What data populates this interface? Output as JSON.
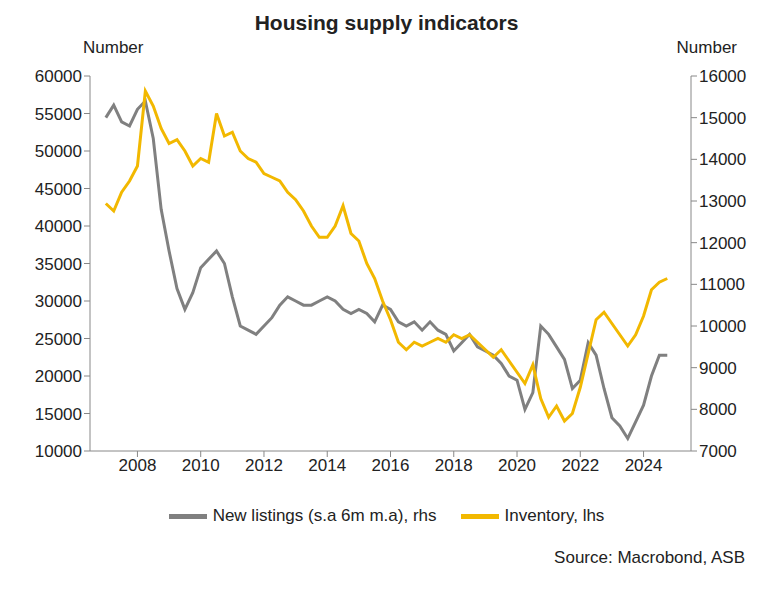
{
  "chart_data": {
    "type": "line",
    "title": "Housing supply indicators",
    "ylabel": "Number",
    "y2label": "Number",
    "source": "Source: Macrobond, ASB",
    "x": [
      2007.0,
      2007.25,
      2007.5,
      2007.75,
      2008.0,
      2008.25,
      2008.5,
      2008.75,
      2009.0,
      2009.25,
      2009.5,
      2009.75,
      2010.0,
      2010.25,
      2010.5,
      2010.75,
      2011.0,
      2011.25,
      2011.5,
      2011.75,
      2012.0,
      2012.25,
      2012.5,
      2012.75,
      2013.0,
      2013.25,
      2013.5,
      2013.75,
      2014.0,
      2014.25,
      2014.5,
      2014.75,
      2015.0,
      2015.25,
      2015.5,
      2015.75,
      2016.0,
      2016.25,
      2016.5,
      2016.75,
      2017.0,
      2017.25,
      2017.5,
      2017.75,
      2018.0,
      2018.25,
      2018.5,
      2018.75,
      2019.0,
      2019.25,
      2019.5,
      2019.75,
      2020.0,
      2020.25,
      2020.5,
      2020.75,
      2021.0,
      2021.25,
      2021.5,
      2021.75,
      2022.0,
      2022.25,
      2022.5,
      2022.75,
      2023.0,
      2023.25,
      2023.5,
      2023.75,
      2024.0,
      2024.25,
      2024.5,
      2024.75
    ],
    "series": [
      {
        "name": "New listings (s.a 6m m.a), rhs",
        "color": "#808080",
        "axis": "y2",
        "values": [
          15000,
          15300,
          14900,
          14800,
          15200,
          15400,
          14500,
          12800,
          11800,
          10900,
          10400,
          10800,
          11400,
          11600,
          11800,
          11500,
          10700,
          10000,
          9900,
          9800,
          10000,
          10200,
          10500,
          10700,
          10600,
          10500,
          10500,
          10600,
          10700,
          10600,
          10400,
          10300,
          10400,
          10300,
          10100,
          10500,
          10400,
          10100,
          10000,
          10100,
          9900,
          10100,
          9900,
          9800,
          9400,
          9600,
          9800,
          9500,
          9400,
          9300,
          9100,
          8800,
          8700,
          8000,
          8400,
          10000,
          9800,
          9500,
          9200,
          8500,
          8700,
          9600,
          9300,
          8500,
          7800,
          7600,
          7300,
          7700,
          8100,
          8800,
          9300,
          9300
        ]
      },
      {
        "name": "Inventory, lhs",
        "color": "#f2b800",
        "axis": "y",
        "values": [
          43000,
          42000,
          44500,
          46000,
          48000,
          58000,
          56000,
          53000,
          51000,
          51500,
          50000,
          48000,
          49000,
          48500,
          55000,
          52000,
          52500,
          50000,
          49000,
          48500,
          47000,
          46500,
          46000,
          44500,
          43500,
          42000,
          40000,
          38500,
          38500,
          40000,
          42700,
          39000,
          38000,
          35000,
          33000,
          30000,
          27500,
          24500,
          23500,
          24500,
          24000,
          24500,
          25000,
          24500,
          25500,
          25000,
          25500,
          24500,
          23500,
          22500,
          23500,
          22000,
          20500,
          19000,
          21500,
          17000,
          14500,
          16000,
          14000,
          15000,
          18500,
          23000,
          27500,
          28500,
          27000,
          25500,
          24000,
          25500,
          28000,
          31500,
          32500,
          33000
        ]
      }
    ],
    "xlim": [
      2006.5,
      2025.5
    ],
    "xticks": [
      2008,
      2010,
      2012,
      2014,
      2016,
      2018,
      2020,
      2022,
      2024
    ],
    "ylim": [
      10000,
      60000
    ],
    "yticks": [
      10000,
      15000,
      20000,
      25000,
      30000,
      35000,
      40000,
      45000,
      50000,
      55000,
      60000
    ],
    "y2lim": [
      7000,
      16000
    ],
    "y2ticks": [
      7000,
      8000,
      9000,
      10000,
      11000,
      12000,
      13000,
      14000,
      15000,
      16000
    ],
    "grid": false,
    "legend": "bottom"
  }
}
